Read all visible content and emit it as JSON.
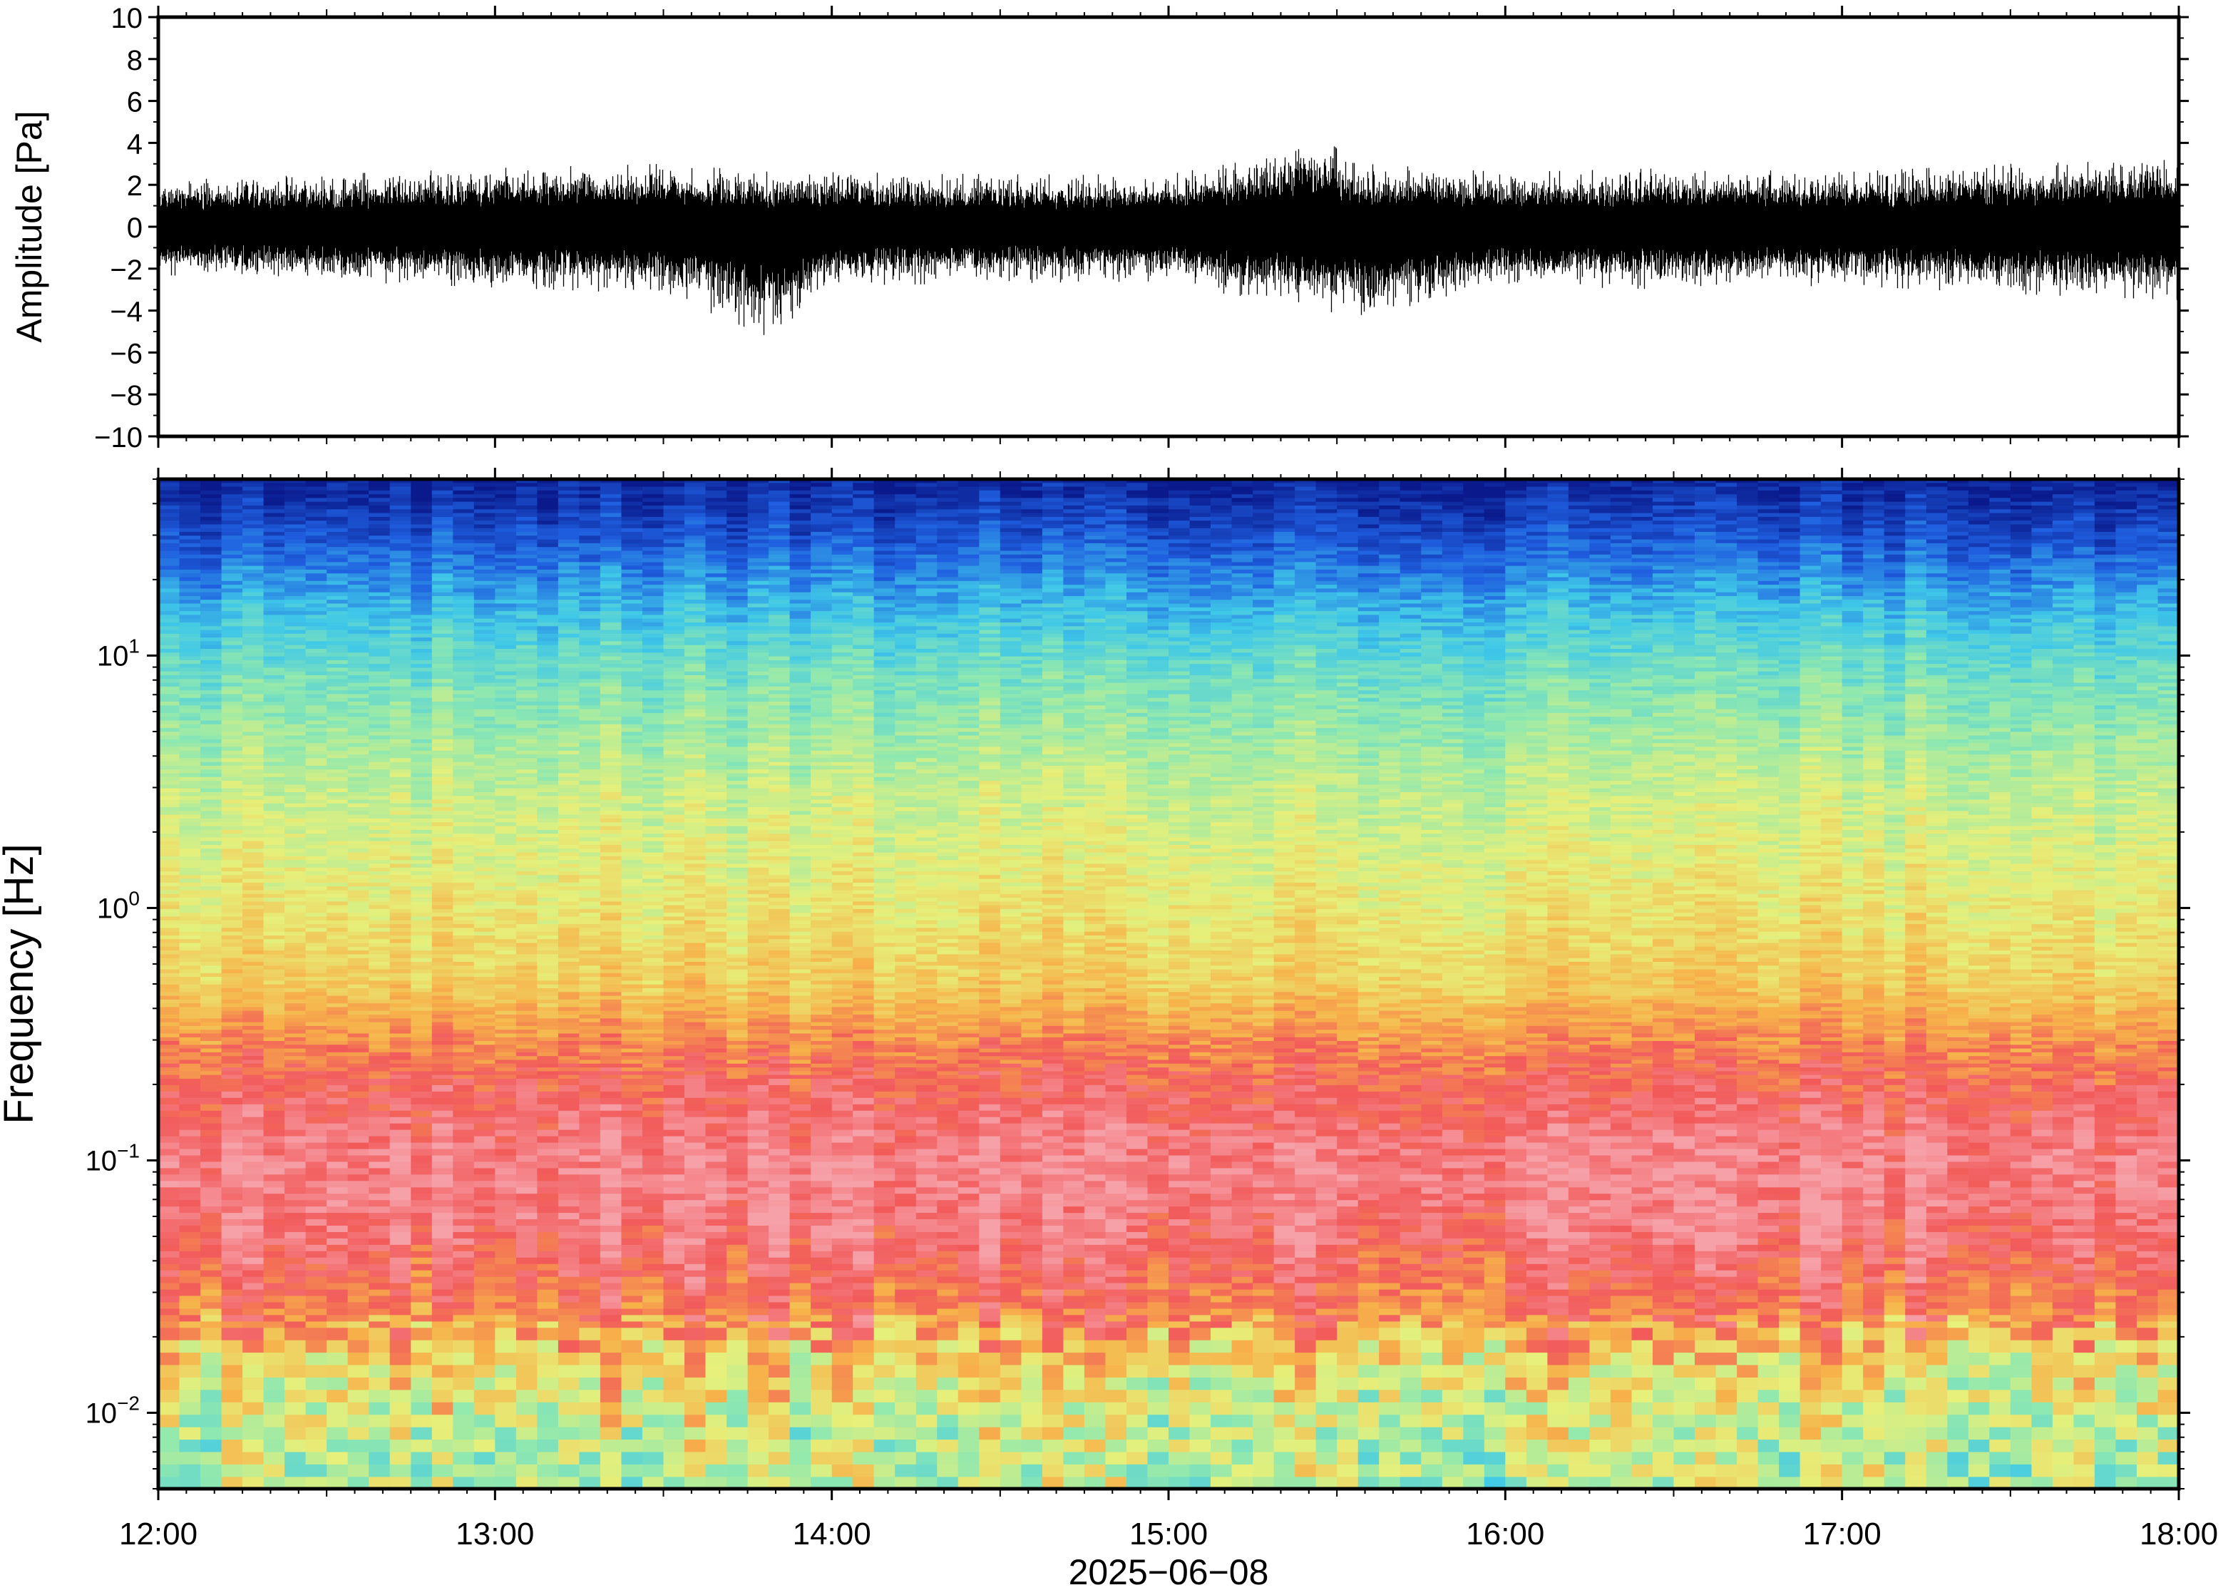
{
  "chart_data": [
    {
      "type": "line",
      "panel": "waveform",
      "ylabel": "Amplitude [Pa]",
      "ylim": [
        -10,
        10
      ],
      "yticks": [
        -10,
        -8,
        -6,
        -4,
        -2,
        0,
        2,
        4,
        6,
        8,
        10
      ],
      "ytick_labels": [
        "−10",
        "−8",
        "−6",
        "−4",
        "−2",
        "0",
        "2",
        "4",
        "6",
        "8",
        "10"
      ],
      "xlim": [
        "12:00",
        "18:00"
      ],
      "series": [
        {
          "color": "#000000",
          "x": [
            "12:00",
            "12:30",
            "13:00",
            "13:30",
            "13:50",
            "14:00",
            "14:30",
            "15:00",
            "15:15",
            "15:25",
            "15:35",
            "16:00",
            "16:30",
            "17:00",
            "17:30",
            "18:00"
          ],
          "envelope_max": [
            2.2,
            2.5,
            2.8,
            3.0,
            2.6,
            2.6,
            2.5,
            2.5,
            3.2,
            4.5,
            3.0,
            2.6,
            2.8,
            2.6,
            3.0,
            3.2
          ],
          "envelope_min": [
            -2.3,
            -2.6,
            -2.9,
            -3.2,
            -5.4,
            -2.8,
            -2.7,
            -2.6,
            -3.5,
            -3.8,
            -4.5,
            -2.8,
            -3.0,
            -2.8,
            -3.2,
            -3.5
          ]
        }
      ]
    },
    {
      "type": "heatmap",
      "panel": "spectrogram",
      "ylabel": "Frequency [Hz]",
      "yscale": "log",
      "ylim": [
        0.005,
        50
      ],
      "yticks": [
        0.01,
        0.1,
        1,
        10
      ],
      "ytick_labels": [
        {
          "base": "10",
          "exp": "−2"
        },
        {
          "base": "10",
          "exp": "−1"
        },
        {
          "base": "10",
          "exp": "0"
        },
        {
          "base": "10",
          "exp": "1"
        }
      ],
      "xlabel": "2025−06−08",
      "xlim": [
        "12:00",
        "18:00"
      ],
      "xticks": [
        "12:00",
        "13:00",
        "14:00",
        "15:00",
        "16:00",
        "17:00",
        "18:00"
      ],
      "colormap": "rainbow (blue → cyan → green → yellow → orange → red → pink)",
      "colormap_stops": [
        "#0a1a8c",
        "#1f5fe0",
        "#3fc8e8",
        "#8ee8b0",
        "#e6f07a",
        "#f7b24a",
        "#f25a5a",
        "#f6a0a8"
      ],
      "profile": [
        {
          "freq": 0.005,
          "level": 0.5
        },
        {
          "freq": 0.008,
          "level": 0.52
        },
        {
          "freq": 0.015,
          "level": 0.62
        },
        {
          "freq": 0.025,
          "level": 0.8
        },
        {
          "freq": 0.05,
          "level": 0.92
        },
        {
          "freq": 0.1,
          "level": 0.95
        },
        {
          "freq": 0.2,
          "level": 0.86
        },
        {
          "freq": 0.3,
          "level": 0.78
        },
        {
          "freq": 0.5,
          "level": 0.66
        },
        {
          "freq": 1,
          "level": 0.6
        },
        {
          "freq": 3,
          "level": 0.52
        },
        {
          "freq": 8,
          "level": 0.4
        },
        {
          "freq": 15,
          "level": 0.28
        },
        {
          "freq": 30,
          "level": 0.12
        },
        {
          "freq": 50,
          "level": 0.02
        }
      ]
    }
  ]
}
